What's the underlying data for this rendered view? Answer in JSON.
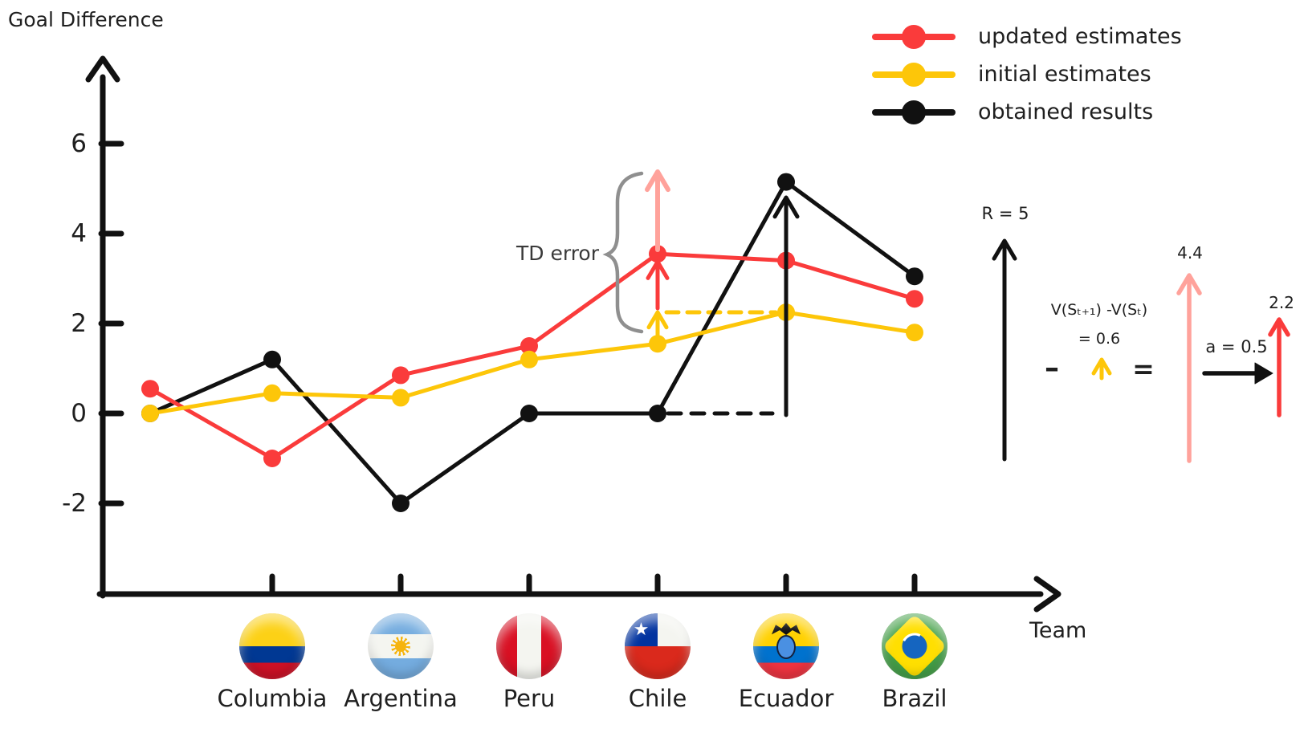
{
  "title": "Goal Difference",
  "x_title": "Team",
  "legend": [
    {
      "label": "updated estimates",
      "color": "#fa3b3b"
    },
    {
      "label": "initial estimates",
      "color": "#fdc609"
    },
    {
      "label": "obtained results",
      "color": "#111111"
    }
  ],
  "teams": [
    {
      "name": "Columbia",
      "flag": "columbia"
    },
    {
      "name": "Argentina",
      "flag": "argentina"
    },
    {
      "name": "Peru",
      "flag": "peru"
    },
    {
      "name": "Chile",
      "flag": "chile"
    },
    {
      "name": "Ecuador",
      "flag": "ecuador"
    },
    {
      "name": "Brazil",
      "flag": "brazil"
    }
  ],
  "chart_data": {
    "type": "line",
    "categories": [
      "",
      "Columbia",
      "Argentina",
      "Peru",
      "Chile",
      "Ecuador",
      "Brazil"
    ],
    "series": [
      {
        "name": "updated estimates",
        "color": "#fa3b3b",
        "values": [
          0.55,
          -1,
          0.85,
          1.5,
          3.55,
          3.4,
          2.55
        ]
      },
      {
        "name": "initial estimates",
        "color": "#fdc609",
        "values": [
          0,
          0.45,
          0.35,
          1.2,
          1.55,
          2.25,
          1.8
        ]
      },
      {
        "name": "obtained results",
        "color": "#111111",
        "values": [
          0,
          1.2,
          -2,
          0,
          0,
          5.15,
          3.05
        ]
      }
    ],
    "y_ticks": [
      6,
      4,
      2,
      0,
      -2
    ],
    "ylim": [
      -3.5,
      8
    ],
    "ylabel": "Goal Difference",
    "xlabel": "Team",
    "grid": false,
    "legend_position": "top-right",
    "notes": "first point of each series is drawn at the axis origin column, before the Columbia tick; dashed guide lines run from Chile to Ecuador at y=0 (black) and y=2.25 (yellow)"
  },
  "annotations": {
    "td_error": "TD error",
    "reward": "R = 5",
    "value_diff_line1": "V(Sₜ₊₁) -V(Sₜ)",
    "value_diff_line2": "= 0.6",
    "minus": "–",
    "equals": "=",
    "pink_arrow_value": "4.4",
    "alpha": "a = 0.5",
    "red_arrow_value": "2.2"
  },
  "colors": {
    "red": "#fa3b3b",
    "yellow": "#fdc609",
    "black": "#111111",
    "salmon": "#ffa29b",
    "brace_gray": "#8f8f8f",
    "text": "#1f1f1f"
  }
}
